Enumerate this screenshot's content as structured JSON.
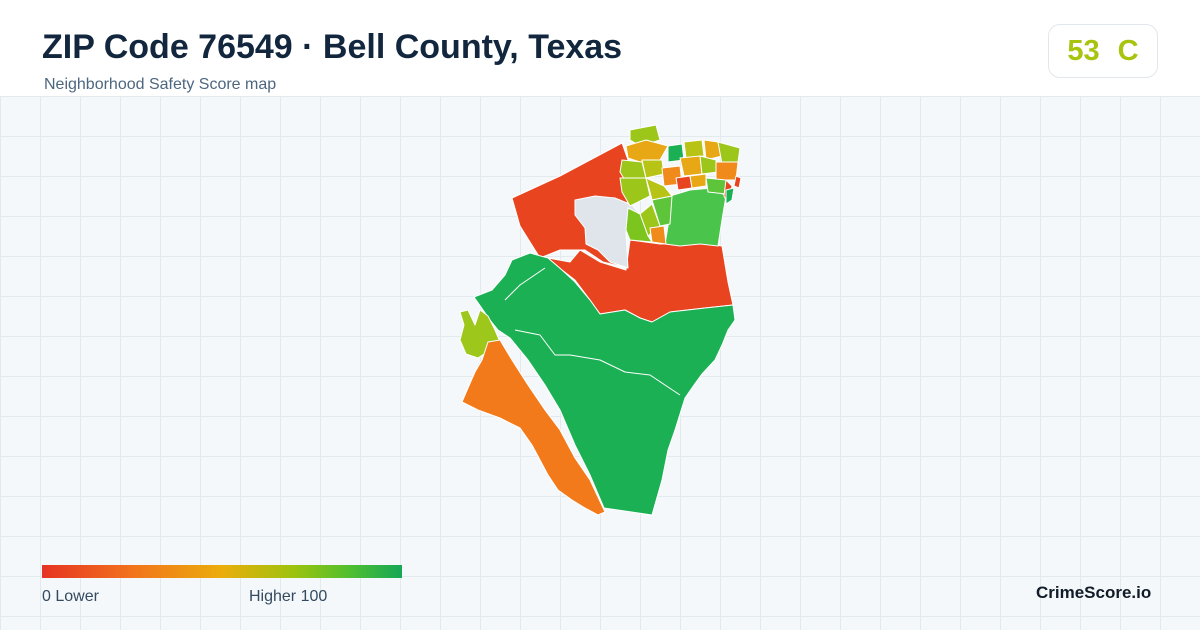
{
  "header": {
    "title": "ZIP Code 76549 · Bell County, Texas",
    "subtitle": "Neighborhood Safety Score map"
  },
  "score": {
    "value": "53",
    "grade": "C",
    "color": "#a8c40e"
  },
  "map": {
    "regions": [
      {
        "id": "northwest-red",
        "color": "#e8441f"
      },
      {
        "id": "central-red-band",
        "color": "#e8441f"
      },
      {
        "id": "no-data-area",
        "color": "#dfe5ea"
      },
      {
        "id": "east-green",
        "color": "#4ac44a"
      },
      {
        "id": "southern-green",
        "color": "#1cb055"
      },
      {
        "id": "western-lime",
        "color": "#9dc71a"
      },
      {
        "id": "southwest-orange",
        "color": "#f27a1b"
      },
      {
        "id": "north-tracts",
        "color_palette": [
          "#9cc71a",
          "#e8a714",
          "#f08a1a",
          "#5ec43a",
          "#1cb055",
          "#e8441f",
          "#b8c415"
        ]
      }
    ]
  },
  "legend": {
    "low_label": "0  Lower",
    "high_label": "Higher  100",
    "colors": [
      "#e63323",
      "#f2731c",
      "#ebad0c",
      "#9cc30e",
      "#52bf2e",
      "#16a757"
    ]
  },
  "brand": "CrimeScore.io"
}
